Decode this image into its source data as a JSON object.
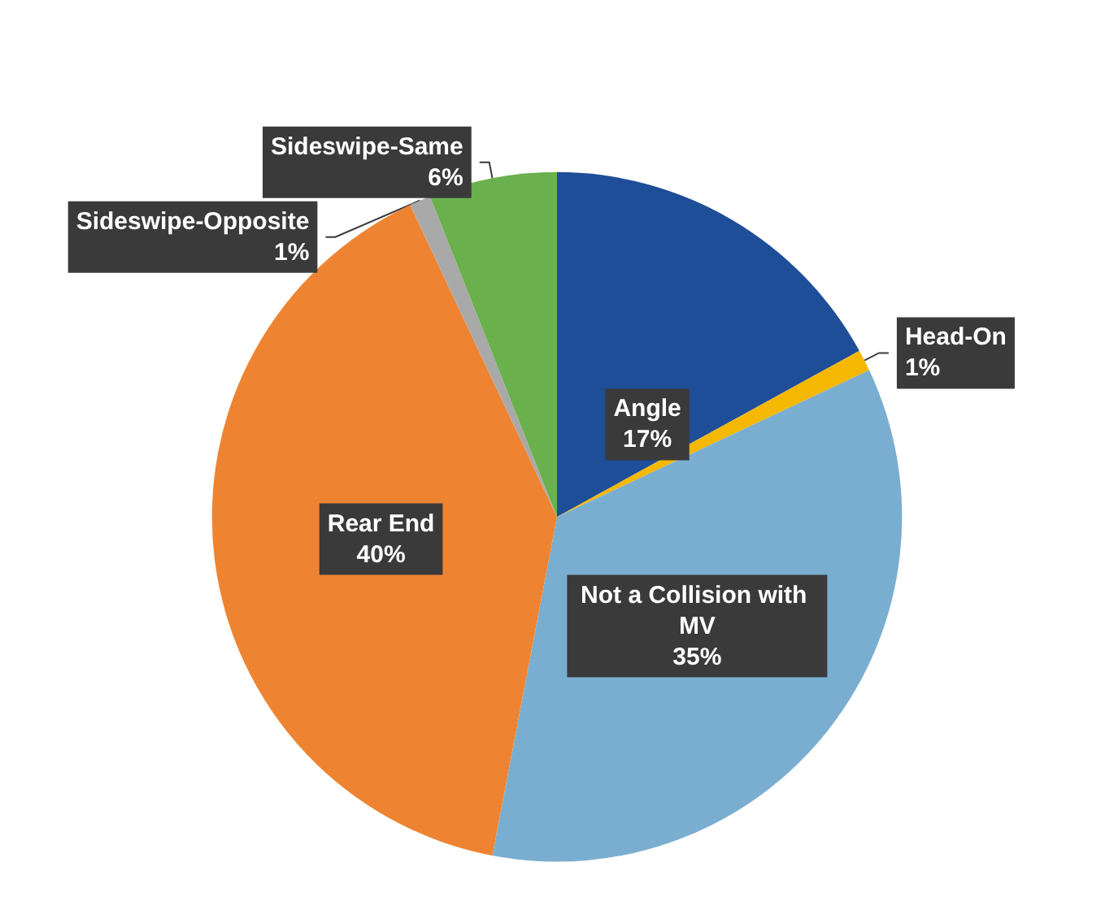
{
  "chart_data": {
    "type": "pie",
    "categories": [
      "Angle",
      "Head-On",
      "Not a Collision with MV",
      "Rear End",
      "Sideswipe-Opposite",
      "Sideswipe-Same"
    ],
    "values": [
      17,
      1,
      35,
      40,
      1,
      6
    ],
    "colors": [
      "#1f4e99",
      "#f5b800",
      "#7aaed0",
      "#ee8432",
      "#a9a9a9",
      "#6ab04c"
    ],
    "value_labels": [
      "17%",
      "1%",
      "35%",
      "40%",
      "1%",
      "6%"
    ],
    "legend": false
  }
}
